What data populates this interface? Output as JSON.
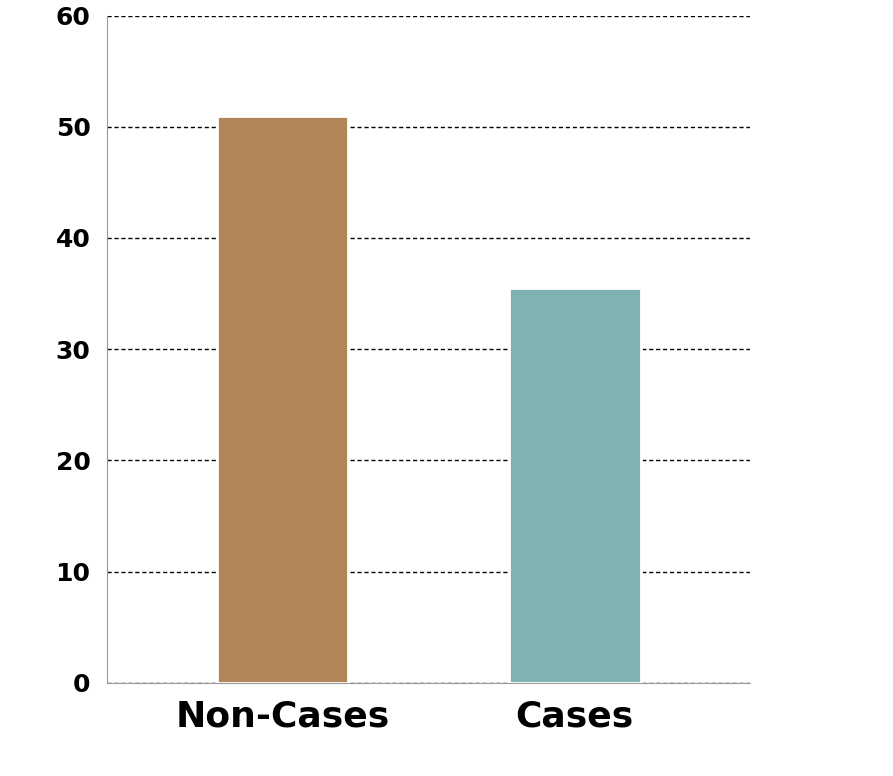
{
  "chart_data": {
    "type": "bar",
    "categories": [
      "Non-Cases",
      "Cases"
    ],
    "values": [
      51,
      35.5
    ],
    "colors": [
      "#b08558",
      "#7fb3b3"
    ],
    "ylim": [
      0,
      60
    ],
    "yticks": [
      0,
      10,
      20,
      30,
      40,
      50,
      60
    ],
    "grid": true
  }
}
